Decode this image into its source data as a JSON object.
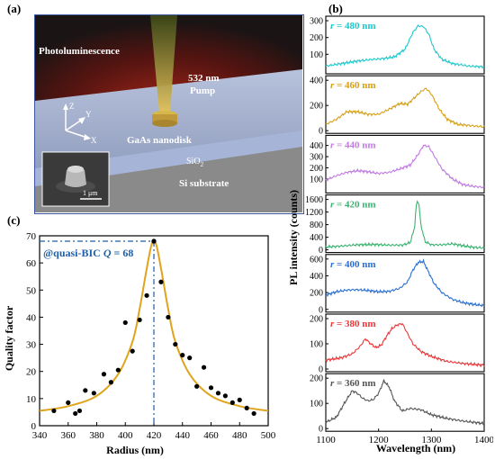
{
  "labels": {
    "a": "(a)",
    "b": "(b)",
    "c": "(c)"
  },
  "schematic": {
    "photoluminescence": "Photoluminescence",
    "pump_line1": "532 nm",
    "pump_line2": "Pump",
    "nanodisk": "GaAs nanodisk",
    "sio2": "SiO",
    "sio2_sub": "2",
    "substrate": "Si substrate",
    "axis_z": "Z",
    "axis_y": "Y",
    "axis_x": "X",
    "scale_bar": "1 μm",
    "colors": {
      "background": "#1a1414",
      "glow": "#8a1a12",
      "beam": "#d7b64a",
      "substrate": "#8c8c8c",
      "oxide": "#a8b6d8",
      "slab": "#9aa8c8",
      "border": "#3b56a0"
    }
  },
  "chart_data": [
    {
      "type": "line",
      "panel": "b",
      "xlabel": "Wavelength (nm)",
      "ylabel": "PL intensity (counts)",
      "xlim": [
        1100,
        1400
      ],
      "x_ticks": [
        "1100",
        "1200",
        "1300",
        "1400"
      ],
      "series": [
        {
          "name": "r = 480 nm",
          "r_value": "480",
          "color": "#20c8cc",
          "ylim": [
            0,
            300
          ],
          "y_ticks": [
            "100",
            "200",
            "300"
          ],
          "x": [
            1100,
            1130,
            1160,
            1190,
            1210,
            1230,
            1250,
            1265,
            1275,
            1285,
            1295,
            1305,
            1320,
            1340,
            1370,
            1400
          ],
          "y": [
            30,
            45,
            60,
            70,
            75,
            85,
            130,
            230,
            270,
            265,
            220,
            130,
            70,
            45,
            30,
            25
          ]
        },
        {
          "name": "r = 460 nm",
          "r_value": "460",
          "color": "#d4a017",
          "ylim": [
            0,
            400
          ],
          "y_ticks": [
            "0",
            "200",
            "400"
          ],
          "x": [
            1100,
            1120,
            1140,
            1160,
            1180,
            1200,
            1220,
            1240,
            1255,
            1265,
            1280,
            1290,
            1300,
            1315,
            1330,
            1350,
            1375,
            1400
          ],
          "y": [
            50,
            90,
            150,
            150,
            130,
            130,
            170,
            215,
            210,
            250,
            310,
            335,
            290,
            170,
            90,
            50,
            40,
            30
          ]
        },
        {
          "name": "r = 440 nm",
          "r_value": "440",
          "color": "#c07ce0",
          "ylim": [
            0,
            450
          ],
          "y_ticks": [
            "100",
            "200",
            "300",
            "400"
          ],
          "x": [
            1100,
            1120,
            1140,
            1160,
            1180,
            1200,
            1220,
            1240,
            1260,
            1275,
            1285,
            1295,
            1305,
            1320,
            1340,
            1360,
            1380,
            1400
          ],
          "y": [
            90,
            130,
            160,
            175,
            165,
            150,
            160,
            190,
            225,
            320,
            400,
            390,
            310,
            190,
            100,
            50,
            35,
            25
          ]
        },
        {
          "name": "r = 420 nm",
          "r_value": "420",
          "color": "#3cb371",
          "ylim": [
            0,
            1600
          ],
          "y_ticks": [
            "0",
            "400",
            "800",
            "1200",
            "1600"
          ],
          "x": [
            1100,
            1130,
            1160,
            1190,
            1220,
            1245,
            1260,
            1268,
            1272,
            1276,
            1280,
            1288,
            1300,
            1320,
            1340,
            1360,
            1380,
            1400
          ],
          "y": [
            90,
            120,
            160,
            170,
            150,
            150,
            230,
            700,
            1500,
            1540,
            800,
            260,
            160,
            160,
            190,
            130,
            80,
            60
          ]
        },
        {
          "name": "r = 400 nm",
          "r_value": "400",
          "color": "#2d6fd0",
          "ylim": [
            0,
            600
          ],
          "y_ticks": [
            "0",
            "200",
            "400",
            "600"
          ],
          "x": [
            1100,
            1120,
            1140,
            1160,
            1180,
            1200,
            1220,
            1240,
            1255,
            1265,
            1275,
            1285,
            1295,
            1305,
            1320,
            1340,
            1360,
            1380,
            1400
          ],
          "y": [
            170,
            210,
            230,
            235,
            225,
            210,
            215,
            250,
            330,
            470,
            560,
            570,
            440,
            310,
            200,
            120,
            80,
            60,
            45
          ]
        },
        {
          "name": "r = 380 nm",
          "r_value": "380",
          "color": "#e8383a",
          "ylim": [
            0,
            200
          ],
          "y_ticks": [
            "0",
            "100",
            "200"
          ],
          "x": [
            1100,
            1130,
            1150,
            1165,
            1175,
            1185,
            1195,
            1205,
            1215,
            1225,
            1235,
            1245,
            1255,
            1265,
            1280,
            1300,
            1330,
            1360,
            1400
          ],
          "y": [
            35,
            45,
            60,
            90,
            120,
            100,
            85,
            95,
            130,
            160,
            175,
            180,
            140,
            100,
            70,
            50,
            30,
            22,
            15
          ]
        },
        {
          "name": "r = 360 nm",
          "r_value": "360",
          "color": "#555555",
          "ylim": [
            0,
            200
          ],
          "y_ticks": [
            "0",
            "100",
            "200"
          ],
          "x": [
            1100,
            1120,
            1135,
            1150,
            1160,
            1170,
            1180,
            1190,
            1200,
            1210,
            1220,
            1230,
            1245,
            1260,
            1280,
            1300,
            1330,
            1360,
            1400
          ],
          "y": [
            25,
            45,
            100,
            150,
            140,
            120,
            110,
            115,
            140,
            190,
            165,
            110,
            70,
            80,
            75,
            55,
            40,
            30,
            20
          ]
        }
      ]
    },
    {
      "type": "scatter",
      "panel": "c",
      "xlabel": "Radius (nm)",
      "ylabel": "Quality factor",
      "xlim": [
        340,
        500
      ],
      "ylim": [
        0,
        70
      ],
      "x_ticks": [
        "340",
        "360",
        "380",
        "400",
        "420",
        "440",
        "460",
        "480",
        "500"
      ],
      "y_ticks": [
        "0",
        "10",
        "20",
        "30",
        "40",
        "50",
        "60",
        "70"
      ],
      "annotation": "@quasi-BIC ",
      "annotation_q": "Q",
      "annotation_value": " = 68",
      "bic_point": {
        "x": 420,
        "y": 68
      },
      "points": {
        "x": [
          350,
          360,
          365,
          368,
          372,
          378,
          385,
          390,
          395,
          400,
          405,
          410,
          415,
          420,
          425,
          430,
          435,
          440,
          445,
          450,
          455,
          460,
          465,
          470,
          475,
          480,
          485,
          490
        ],
        "y": [
          5.5,
          8.5,
          4.5,
          5.5,
          13,
          12,
          19,
          16,
          20.5,
          38,
          27.5,
          39,
          48,
          68,
          53,
          40,
          30,
          26,
          25,
          14.5,
          21.5,
          14,
          12,
          11,
          8.5,
          9.5,
          6.5,
          4.5
        ]
      },
      "fit": {
        "type": "lorentzian",
        "color": "#e0a41c",
        "x": [
          340,
          360,
          380,
          395,
          405,
          410,
          415,
          418,
          420,
          422,
          425,
          430,
          435,
          445,
          460,
          480,
          500
        ],
        "y": [
          5.5,
          7.2,
          11,
          19,
          31,
          43,
          58,
          66,
          68,
          66,
          58,
          43,
          31,
          19,
          11,
          7.2,
          5.5
        ]
      }
    }
  ]
}
